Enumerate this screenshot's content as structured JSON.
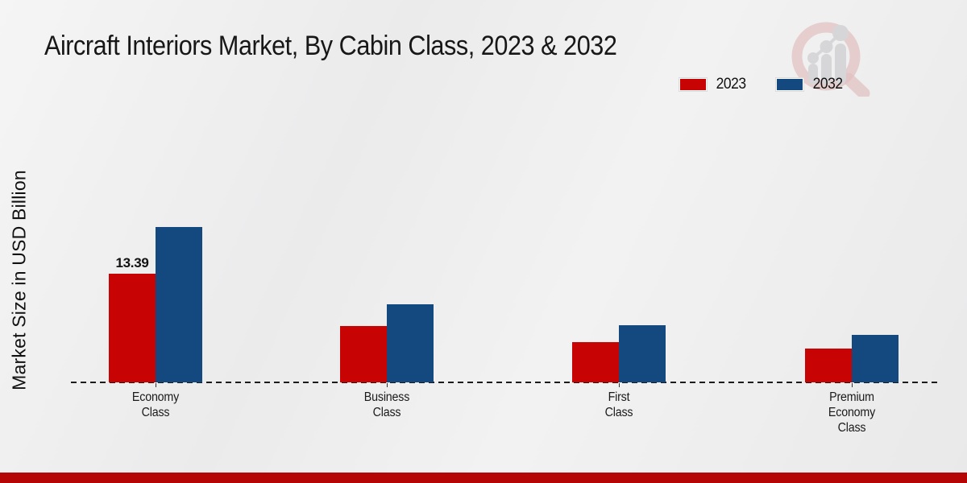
{
  "title": "Aircraft Interiors Market, By Cabin Class, 2023 & 2032",
  "y_axis_label": "Market Size in USD Billion",
  "legend": {
    "items": [
      {
        "label": "2023",
        "color": "#c70303"
      },
      {
        "label": "2032",
        "color": "#14497f"
      }
    ]
  },
  "watermark": {
    "icon": "magnifier-bar-chart-logo",
    "ring_color": "#d9a4a4",
    "bars_color": "#c7c7cb"
  },
  "footer": {
    "bar_color": "#b50505"
  },
  "chart_data": {
    "type": "bar",
    "title": "Aircraft Interiors Market, By Cabin Class, 2023 & 2032",
    "xlabel": "",
    "ylabel": "Market Size in USD Billion",
    "categories": [
      "Economy Class",
      "Business Class",
      "First Class",
      "Premium Economy Class"
    ],
    "categories_display": [
      "Economy\nClass",
      "Business\nClass",
      "First\nClass",
      "Premium\nEconomy\nClass"
    ],
    "series": [
      {
        "name": "2023",
        "color": "#c70303",
        "values": [
          13.39,
          6.9,
          5.0,
          4.2
        ]
      },
      {
        "name": "2032",
        "color": "#14497f",
        "values": [
          19.1,
          9.6,
          7.0,
          5.9
        ]
      }
    ],
    "data_labels": [
      {
        "series": "2023",
        "category": "Economy Class",
        "text": "13.39"
      }
    ],
    "ylim": [
      0,
      20
    ],
    "grid": false,
    "y_axis_ticks_visible": false,
    "legend_position": "top-right",
    "baseline_style": "dashed"
  }
}
